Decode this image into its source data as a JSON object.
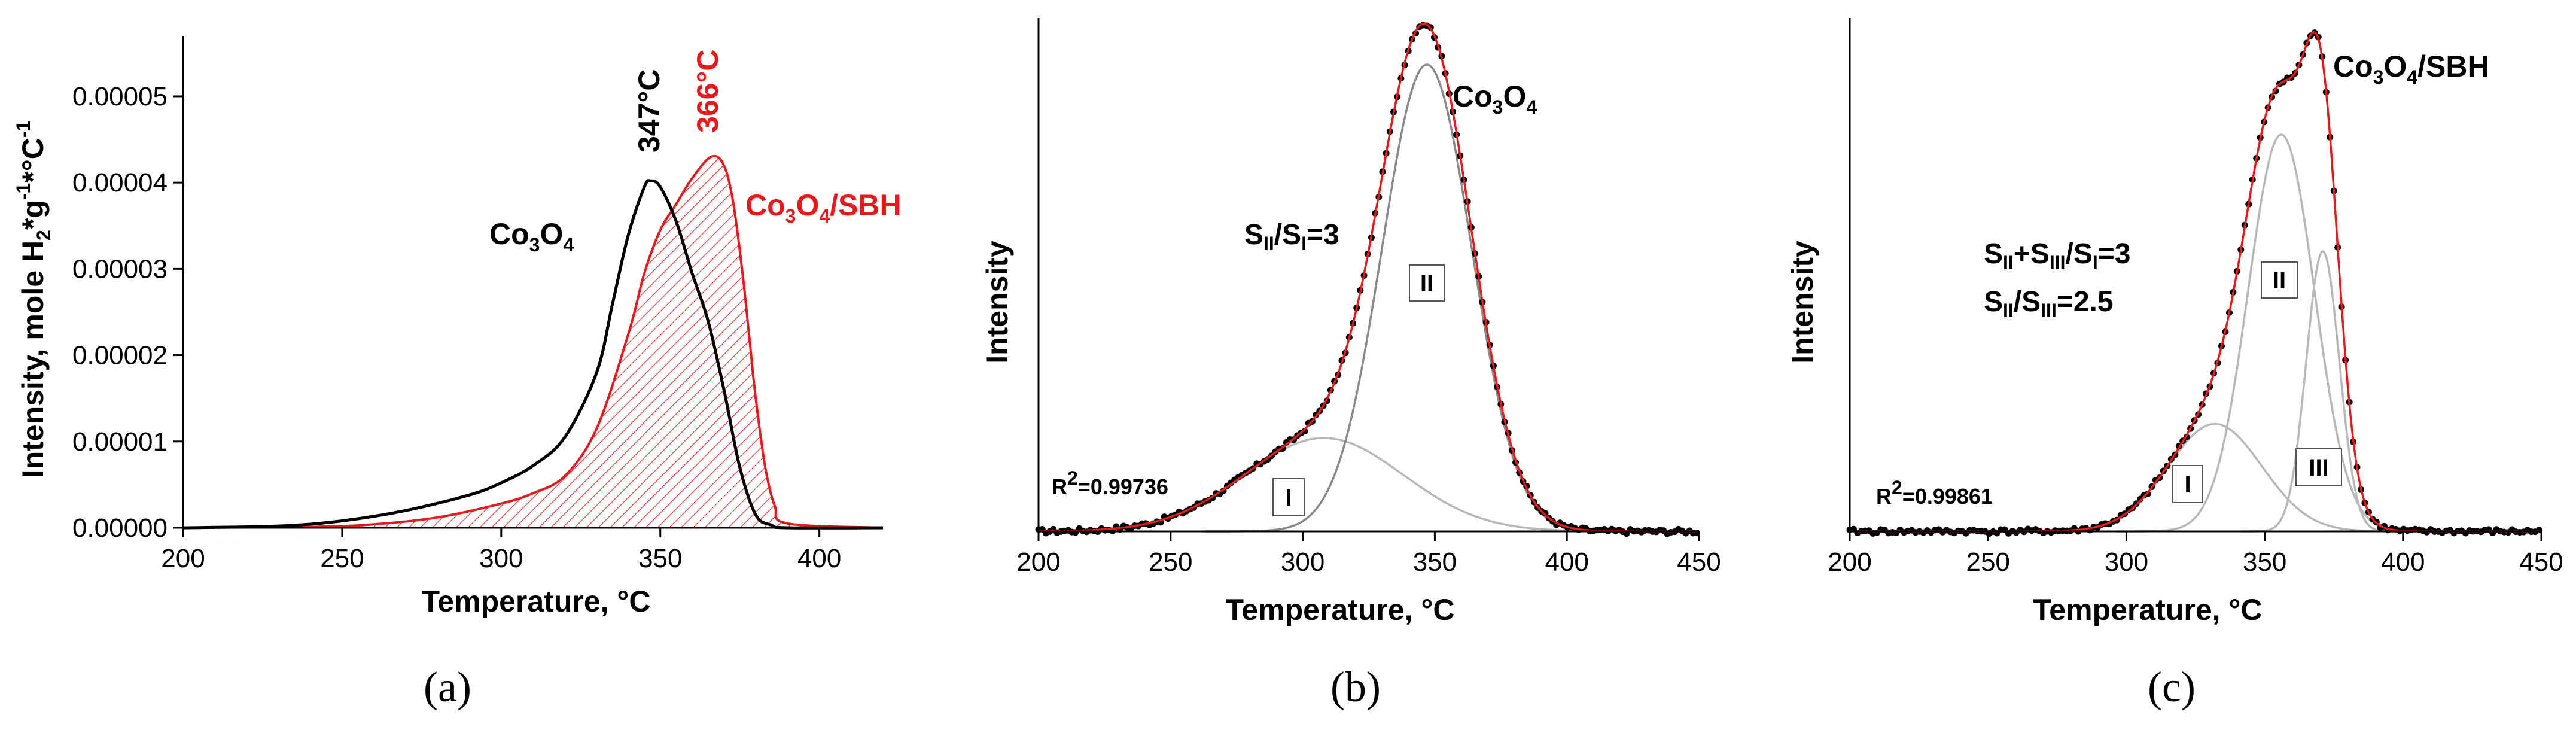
{
  "chart_data": [
    {
      "type": "area",
      "panel_label": "(a)",
      "xlabel": "Temperature, °C",
      "ylabel": "Intensity, mole H₂*g⁻¹*°C⁻¹",
      "xlim": [
        200,
        420
      ],
      "ylim": [
        0,
        5.7e-05
      ],
      "xticks": [
        200,
        250,
        300,
        350,
        400
      ],
      "xtick_labels": [
        "200",
        "250",
        "300",
        "350",
        "400"
      ],
      "yticks": [
        0,
        1e-05,
        2e-05,
        3e-05,
        4e-05,
        5e-05
      ],
      "ytick_labels": [
        "0.00000",
        "0.00001",
        "0.00002",
        "0.00003",
        "0.00004",
        "0.00005"
      ],
      "series": [
        {
          "name": "Co3O4",
          "color": "#000000",
          "x": [
            200,
            230,
            250,
            270,
            290,
            300,
            310,
            320,
            330,
            335,
            340,
            345,
            347,
            350,
            355,
            360,
            365,
            370,
            375,
            380,
            385,
            390,
            420
          ],
          "y": [
            0,
            2e-07,
            8e-07,
            2e-06,
            3.8e-06,
            5.2e-06,
            7.2e-06,
            1.05e-05,
            1.8e-05,
            2.6e-05,
            3.4e-05,
            3.95e-05,
            4.02e-05,
            3.95e-05,
            3.55e-05,
            2.95e-05,
            2.4e-05,
            1.6e-05,
            7e-06,
            1.5e-06,
            3e-07,
            0,
            0
          ]
        },
        {
          "name": "Co3O4/SBH",
          "color": "#e8191c",
          "hatched": true,
          "x": [
            200,
            240,
            260,
            280,
            300,
            310,
            320,
            330,
            340,
            345,
            350,
            355,
            360,
            366,
            370,
            373,
            376,
            378,
            380,
            383,
            386,
            390,
            420
          ],
          "y": [
            0,
            1e-07,
            4e-07,
            1.2e-06,
            2.8e-06,
            4e-06,
            6e-06,
            1.15e-05,
            2.25e-05,
            2.95e-05,
            3.45e-05,
            3.75e-05,
            4.05e-05,
            4.3e-05,
            4.2e-05,
            3.75e-05,
            2.9e-05,
            2.2e-05,
            1.5e-05,
            7e-06,
            2.5e-06,
            5e-07,
            0
          ]
        }
      ],
      "annotations": [
        {
          "text": "347°C",
          "x": 347,
          "y": 4.02e-05,
          "color": "#000000"
        },
        {
          "text": "366°C",
          "x": 366,
          "y": 4.3e-05,
          "color": "#e8191c"
        }
      ],
      "legend": {
        "co3o4_main": "Co",
        "co3o4_sub1": "3",
        "co3o4_mid": "O",
        "co3o4_sub2": "4",
        "sbh_main": "Co",
        "sbh_sub1": "3",
        "sbh_mid": "O",
        "sbh_sub2": "4",
        "sbh_tail": "/SBH"
      }
    },
    {
      "type": "scatter",
      "panel_label": "(b)",
      "xlabel": "Temperature, °C",
      "ylabel": "Intensity",
      "xlim": [
        200,
        450
      ],
      "ylim": [
        0,
        1.1
      ],
      "xticks": [
        200,
        250,
        300,
        350,
        400,
        450
      ],
      "xtick_labels": [
        "200",
        "250",
        "300",
        "350",
        "400",
        "450"
      ],
      "r2": "R²=0.99736",
      "ratio_text": [
        "Sᴵᴵ/Sᴵ=3"
      ],
      "ratio": {
        "pre": "S",
        "s1": "II",
        "mid": "/S",
        "s2": "I",
        "post": "=3"
      },
      "r2_parts": {
        "pre": "R",
        "sup": "2",
        "post": "=0.99736"
      },
      "title_parts": {
        "main": "Co",
        "sub1": "3",
        "mid": "O",
        "sub2": "4"
      },
      "peaks": [
        {
          "label": "I",
          "center": 308,
          "height": 0.2,
          "width": 30
        },
        {
          "label": "II",
          "center": 347,
          "height": 1.0,
          "width": 17
        }
      ],
      "experimental_color": "#000000",
      "fit_color": "#e8191c",
      "component_color": "#b8b8b8",
      "peak_II_color": "#8a8a8a"
    },
    {
      "type": "scatter",
      "panel_label": "(c)",
      "xlabel": "Temperature, °C",
      "ylabel": "Intensity",
      "xlim": [
        200,
        450
      ],
      "ylim": [
        0,
        1.1
      ],
      "xticks": [
        200,
        250,
        300,
        350,
        400,
        450
      ],
      "xtick_labels": [
        "200",
        "250",
        "300",
        "350",
        "400",
        "450"
      ],
      "r2_parts": {
        "pre": "R",
        "sup": "2",
        "post": "=0.99861"
      },
      "ratio1": {
        "pre": "S",
        "s1": "II",
        "plus": "+S",
        "s2": "III",
        "mid": "/S",
        "s3": "I",
        "post": "=3"
      },
      "ratio2": {
        "pre": "S",
        "s1": "II",
        "mid": "/S",
        "s2": "III",
        "post": "=2.5"
      },
      "title_parts": {
        "main": "Co",
        "sub1": "3",
        "mid": "O",
        "sub2": "4",
        "tail": "/SBH"
      },
      "peaks": [
        {
          "label": "I",
          "center": 332,
          "height": 0.23,
          "width": 17
        },
        {
          "label": "II",
          "center": 356,
          "height": 0.85,
          "width": 12
        },
        {
          "label": "III",
          "center": 371,
          "height": 0.6,
          "width": 6
        }
      ],
      "experimental_color": "#000000",
      "fit_color": "#e8191c",
      "component_color": "#b8b8b8"
    }
  ]
}
